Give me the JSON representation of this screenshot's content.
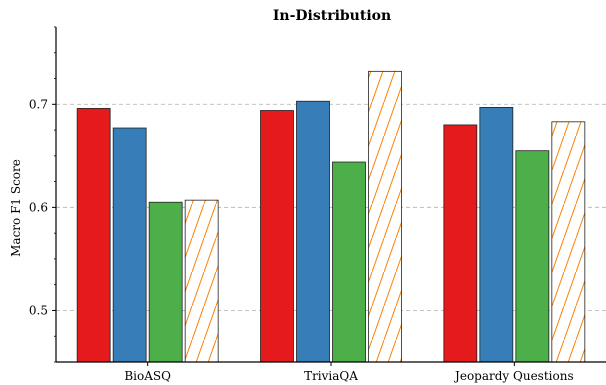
{
  "chart_data": {
    "type": "bar",
    "title": "In-Distribution",
    "xlabel": "",
    "ylabel": "Macro F1 Score",
    "ylim": [
      0.45,
      0.775
    ],
    "yticks": [
      "0.5",
      "0.6",
      "0.7"
    ],
    "ytick_values": [
      0.5,
      0.6,
      0.7
    ],
    "grid": true,
    "legend": "none",
    "categories": [
      "BioASQ",
      "TriviaQA",
      "Jeopardy Questions"
    ],
    "series": [
      {
        "color": "#e41a1c",
        "hatch": false,
        "values": [
          0.696,
          0.694,
          0.68
        ]
      },
      {
        "color": "#377eb8",
        "hatch": false,
        "values": [
          0.677,
          0.703,
          0.697
        ]
      },
      {
        "color": "#4daf4a",
        "hatch": false,
        "values": [
          0.605,
          0.644,
          0.655
        ]
      },
      {
        "color": "#ff7f00",
        "hatch": true,
        "values": [
          0.607,
          0.732,
          0.683
        ]
      }
    ]
  }
}
